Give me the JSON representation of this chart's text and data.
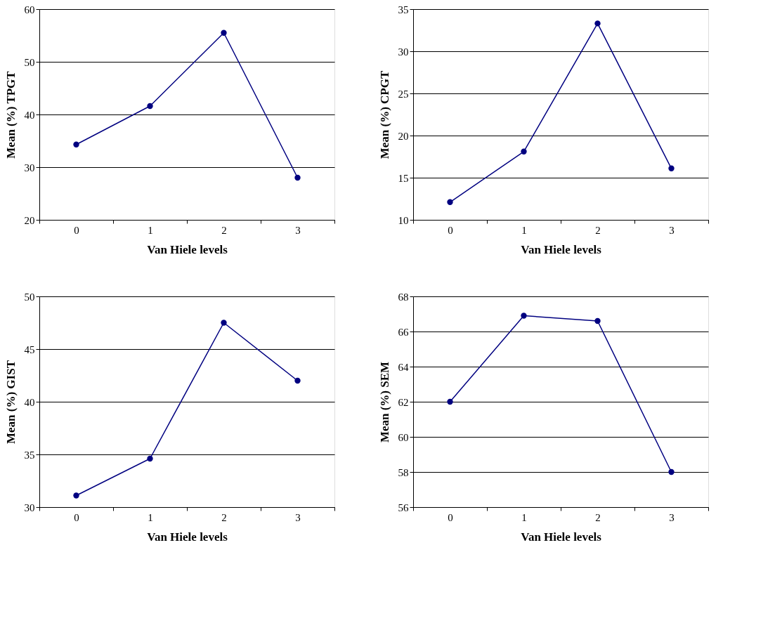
{
  "chart_data": [
    {
      "type": "line",
      "xlabel": "Van Hiele levels",
      "ylabel": "Mean (%) TPGT",
      "categories": [
        "0",
        "1",
        "2",
        "3"
      ],
      "values": [
        34.3,
        41.6,
        55.5,
        28.0
      ],
      "color": "#000080",
      "ylim": [
        20,
        60
      ],
      "yticks": [
        20,
        30,
        40,
        50,
        60
      ],
      "grid": "y",
      "marker": "circle"
    },
    {
      "type": "line",
      "xlabel": "Van Hiele levels",
      "ylabel": "Mean (%) CPGT",
      "categories": [
        "0",
        "1",
        "2",
        "3"
      ],
      "values": [
        12.1,
        18.1,
        33.3,
        16.1
      ],
      "color": "#000080",
      "ylim": [
        10,
        35
      ],
      "yticks": [
        10,
        15,
        20,
        25,
        30,
        35
      ],
      "grid": "y",
      "marker": "circle"
    },
    {
      "type": "line",
      "xlabel": "Van Hiele levels",
      "ylabel": "Mean (%) GIST",
      "categories": [
        "0",
        "1",
        "2",
        "3"
      ],
      "values": [
        31.1,
        34.6,
        47.5,
        42.0
      ],
      "color": "#000080",
      "ylim": [
        30,
        50
      ],
      "yticks": [
        30,
        35,
        40,
        45,
        50
      ],
      "grid": "y",
      "marker": "circle"
    },
    {
      "type": "line",
      "xlabel": "Van Hiele levels",
      "ylabel": "Mean (%) SEM",
      "categories": [
        "0",
        "1",
        "2",
        "3"
      ],
      "values": [
        62.0,
        66.9,
        66.6,
        58.0
      ],
      "color": "#000080",
      "ylim": [
        56,
        68
      ],
      "yticks": [
        56,
        58,
        60,
        62,
        64,
        66,
        68
      ],
      "grid": "y",
      "marker": "circle"
    }
  ]
}
